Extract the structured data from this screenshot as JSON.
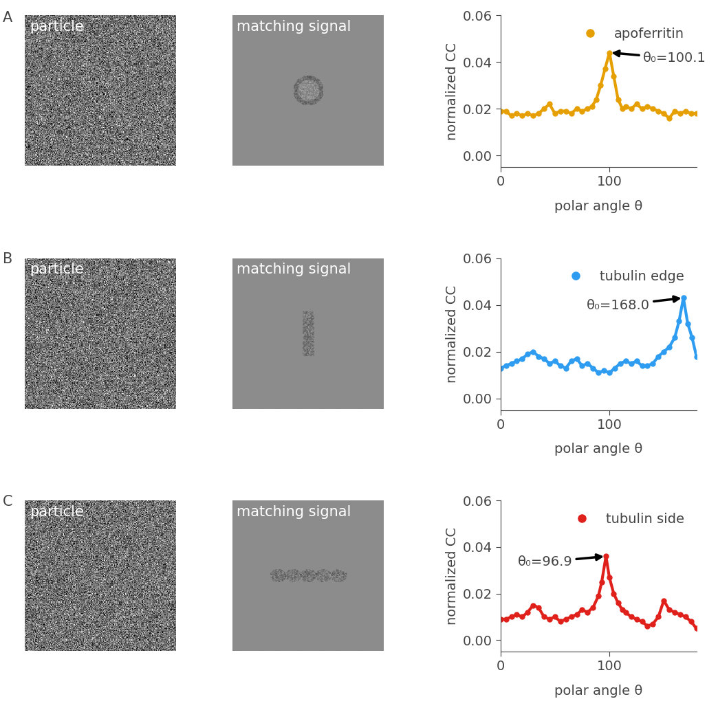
{
  "panels": [
    {
      "label": "A",
      "images": [
        "particle",
        "matching signal"
      ]
    },
    {
      "label": "B",
      "images": [
        "particle",
        "matching signal"
      ]
    },
    {
      "label": "C",
      "images": [
        "particle",
        "matching signal"
      ]
    }
  ],
  "chart_data": [
    {
      "type": "line",
      "xlabel": "polar angle θ",
      "ylabel": "normalized CC",
      "x": [
        0,
        5,
        10,
        15,
        20,
        25,
        30,
        35,
        40,
        45,
        50,
        55,
        60,
        65,
        70,
        75,
        80,
        84,
        88,
        92,
        96,
        100.1,
        104,
        108,
        112,
        115,
        120,
        125,
        130,
        135,
        140,
        145,
        150,
        155,
        160,
        165,
        170,
        175,
        180
      ],
      "series": [
        {
          "name": "apoferritin",
          "color": "#e69f00",
          "marker": "o",
          "values": [
            0.019,
            0.019,
            0.017,
            0.018,
            0.017,
            0.018,
            0.017,
            0.018,
            0.02,
            0.022,
            0.018,
            0.019,
            0.019,
            0.018,
            0.02,
            0.019,
            0.02,
            0.021,
            0.024,
            0.03,
            0.037,
            0.044,
            0.034,
            0.024,
            0.02,
            0.021,
            0.02,
            0.022,
            0.02,
            0.021,
            0.02,
            0.019,
            0.018,
            0.016,
            0.019,
            0.018,
            0.019,
            0.018,
            0.018
          ]
        }
      ],
      "xlim": [
        0,
        180
      ],
      "xticks": [
        0,
        100
      ],
      "ylim": [
        -0.005,
        0.06
      ],
      "yticks": [
        {
          "value": 0,
          "label": "0.00"
        },
        {
          "value": 0.02,
          "label": "0.02"
        },
        {
          "value": 0.04,
          "label": "0.04"
        },
        {
          "value": 0.06,
          "label": "0.06"
        }
      ],
      "legend": "upper right",
      "annotations": [
        {
          "text": "θ₀=100.1",
          "x": 100.1,
          "y": 0.044
        }
      ]
    },
    {
      "type": "line",
      "xlabel": "polar angle θ",
      "ylabel": "normalized CC",
      "x": [
        0,
        5,
        10,
        15,
        20,
        25,
        30,
        35,
        40,
        45,
        50,
        55,
        60,
        65,
        70,
        75,
        80,
        85,
        90,
        95,
        100,
        105,
        110,
        115,
        120,
        125,
        130,
        135,
        140,
        145,
        150,
        155,
        160,
        164,
        168,
        172,
        176,
        180
      ],
      "series": [
        {
          "name": "tubulin edge",
          "color": "#2e9cf0",
          "marker": "o",
          "values": [
            0.013,
            0.014,
            0.015,
            0.016,
            0.017,
            0.019,
            0.02,
            0.018,
            0.017,
            0.015,
            0.016,
            0.014,
            0.013,
            0.016,
            0.017,
            0.014,
            0.015,
            0.013,
            0.011,
            0.012,
            0.011,
            0.013,
            0.015,
            0.016,
            0.015,
            0.016,
            0.014,
            0.014,
            0.015,
            0.018,
            0.02,
            0.022,
            0.026,
            0.033,
            0.043,
            0.032,
            0.026,
            0.018
          ]
        }
      ],
      "xlim": [
        0,
        180
      ],
      "xticks": [
        0,
        100
      ],
      "ylim": [
        -0.005,
        0.06
      ],
      "yticks": [
        {
          "value": 0,
          "label": "0.00"
        },
        {
          "value": 0.02,
          "label": "0.02"
        },
        {
          "value": 0.04,
          "label": "0.04"
        },
        {
          "value": 0.06,
          "label": "0.06"
        }
      ],
      "legend": "upper right",
      "annotations": [
        {
          "text": "θ₀=168.0",
          "x": 168.0,
          "y": 0.043
        }
      ]
    },
    {
      "type": "line",
      "xlabel": "polar angle θ",
      "ylabel": "normalized CC",
      "x": [
        0,
        5,
        10,
        15,
        20,
        25,
        30,
        35,
        40,
        45,
        50,
        55,
        60,
        65,
        70,
        75,
        80,
        85,
        90,
        93,
        96.9,
        100,
        104,
        108,
        112,
        115,
        120,
        125,
        130,
        135,
        140,
        145,
        150,
        155,
        160,
        165,
        170,
        175,
        180
      ],
      "series": [
        {
          "name": "tubulin side",
          "color": "#e0201b",
          "marker": "o",
          "values": [
            0.009,
            0.009,
            0.01,
            0.011,
            0.01,
            0.012,
            0.015,
            0.014,
            0.01,
            0.009,
            0.01,
            0.008,
            0.009,
            0.01,
            0.011,
            0.013,
            0.012,
            0.014,
            0.019,
            0.025,
            0.036,
            0.027,
            0.02,
            0.016,
            0.013,
            0.012,
            0.01,
            0.009,
            0.008,
            0.006,
            0.007,
            0.01,
            0.017,
            0.013,
            0.012,
            0.011,
            0.01,
            0.008,
            0.005
          ]
        }
      ],
      "xlim": [
        0,
        180
      ],
      "xticks": [
        0,
        100
      ],
      "ylim": [
        -0.005,
        0.06
      ],
      "yticks": [
        {
          "value": 0,
          "label": "0.00"
        },
        {
          "value": 0.02,
          "label": "0.02"
        },
        {
          "value": 0.04,
          "label": "0.04"
        },
        {
          "value": 0.06,
          "label": "0.06"
        }
      ],
      "legend": "upper right",
      "annotations": [
        {
          "text": "θ₀=96.9",
          "x": 96.9,
          "y": 0.036
        }
      ]
    }
  ]
}
